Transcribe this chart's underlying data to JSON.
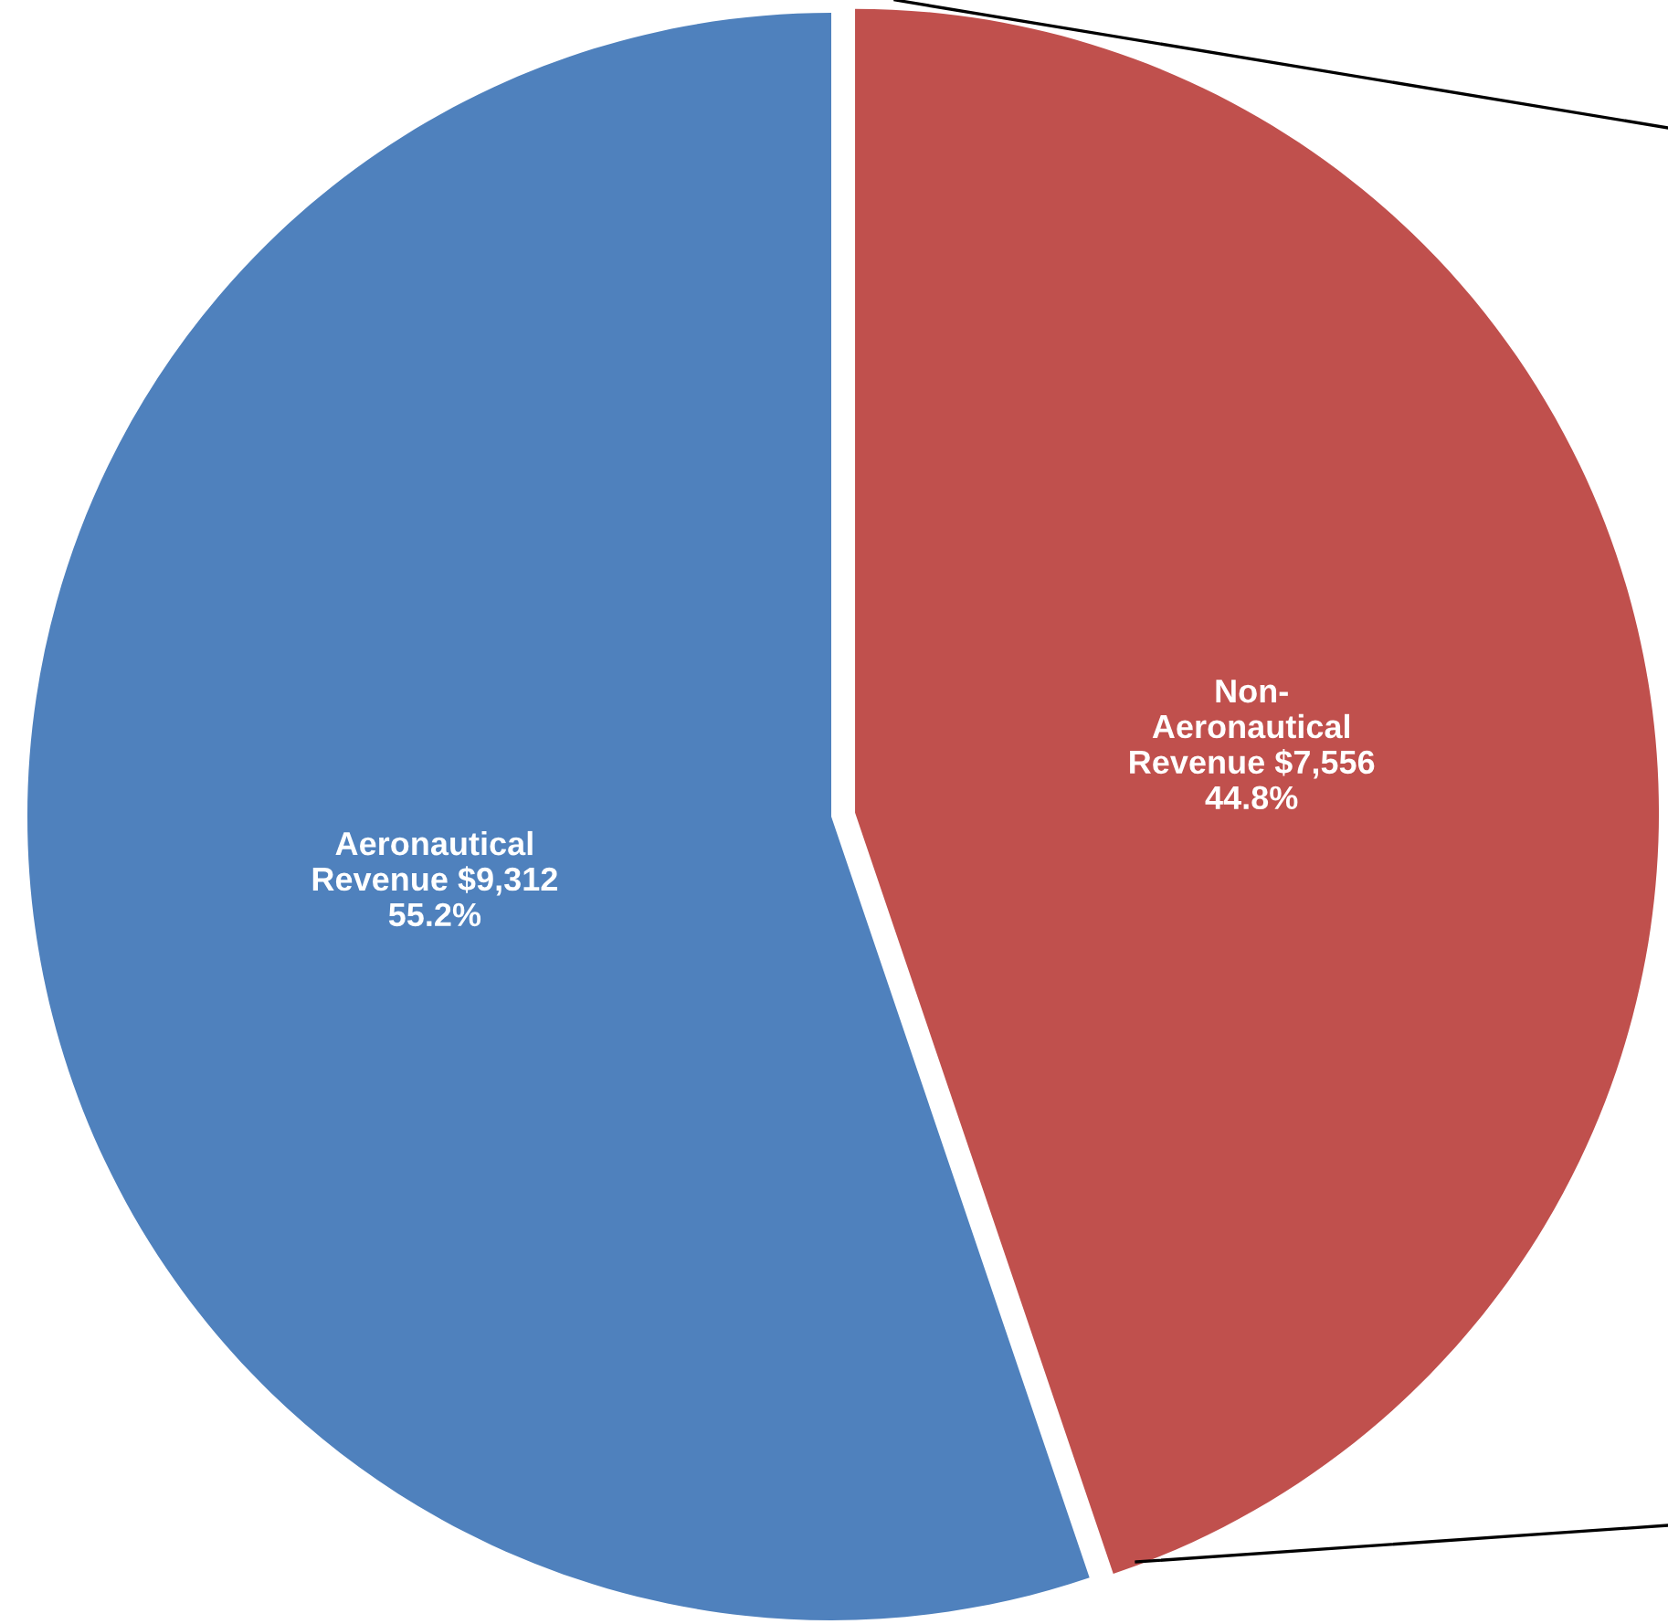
{
  "chart_data": {
    "type": "pie",
    "categories": [
      "Aeronautical\nRevenue",
      "Non-\nAeronautical\nRevenue"
    ],
    "values": [
      9312,
      7556
    ],
    "colors": [
      "#4f81bd",
      "#c0504d"
    ],
    "value_labels": [
      "$9,312\n55.2%",
      "$7,556\n44.8%"
    ]
  }
}
